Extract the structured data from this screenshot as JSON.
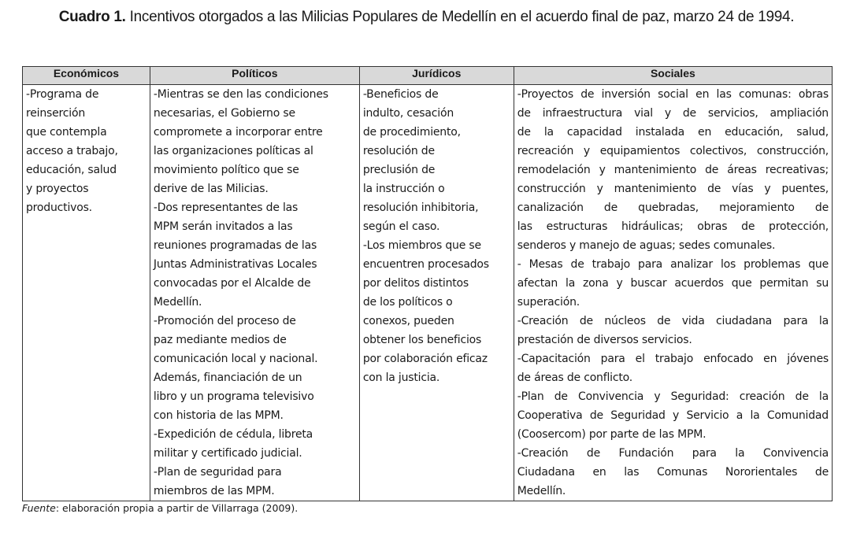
{
  "caption": {
    "label": "Cuadro 1.",
    "text": " Incentivos otorgados a las Milicias Populares de Medellín en el acuerdo final de paz, marzo 24 de 1994."
  },
  "table": {
    "headers": [
      "Económicos",
      "Políticos",
      "Jurídicos",
      "Sociales"
    ],
    "cells": [
      [
        "-Programa de",
        "reinserción",
        "que contempla",
        "acceso a trabajo,",
        "educación, salud",
        "y proyectos",
        "productivos."
      ],
      [
        "-Mientras se den las condiciones",
        "necesarias, el Gobierno se",
        "compromete a incorporar entre",
        "las organizaciones políticas al",
        "movimiento político que se",
        "derive de las Milicias.",
        "-Dos representantes de las",
        "MPM serán invitados a las",
        "reuniones programadas de las",
        "Juntas Administrativas Locales",
        "convocadas por el Alcalde de",
        "Medellín.",
        "-Promoción del proceso de",
        "paz mediante medios de",
        "comunicación local y nacional.",
        "Además, financiación de un",
        "libro y un programa televisivo",
        "con historia de las MPM.",
        "-Expedición de cédula, libreta",
        "militar y certificado judicial.",
        "-Plan de seguridad para",
        "miembros de las MPM."
      ],
      [
        "-Beneficios de",
        "indulto, cesación",
        "de procedimiento,",
        "resolución de",
        "preclusión de",
        "la instrucción o",
        "resolución inhibitoria,",
        "según el caso.",
        "-Los miembros que se",
        "encuentren procesados",
        "por delitos distintos",
        "de los políticos o",
        "conexos, pueden",
        "obtener los beneficios",
        "por colaboración eficaz",
        "con la justicia."
      ],
      [
        "-Proyectos de inversión social en las comunas: obras",
        "de infraestructura vial y de servicios, ampliación",
        "de la capacidad instalada en educación, salud,",
        "recreación y equipamientos colectivos, construcción,",
        "remodelación y mantenimiento de áreas recreativas;",
        "construcción y mantenimiento de vías y puentes,",
        "canalización de quebradas, mejoramiento de",
        "las estructuras hidráulicas; obras de protección,",
        "senderos y manejo de aguas; sedes comunales.",
        "- Mesas de trabajo para analizar los problemas que",
        "afectan la zona y buscar acuerdos que permitan su",
        "superación.",
        "-Creación de núcleos de vida ciudadana para la",
        "prestación de diversos servicios.",
        "-Capacitación para el trabajo enfocado en jóvenes",
        "de áreas de conflicto.",
        "-Plan de Convivencia y Seguridad: creación de la",
        "Cooperativa de Seguridad y Servicio a la Comunidad",
        "(Coosercom) por parte de las MPM.",
        "-Creación de Fundación para la Convivencia",
        "Ciudadana en las Comunas Nororientales de",
        "Medellín."
      ]
    ]
  },
  "footnote": {
    "label": "Fuente",
    "text": ": elaboración propia a partir de Villarraga (2009)."
  }
}
